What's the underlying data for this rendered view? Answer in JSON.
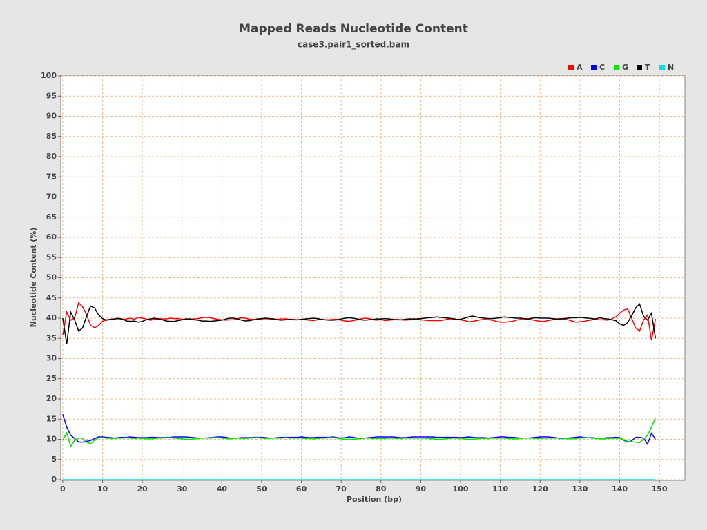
{
  "chart_data": {
    "type": "line",
    "title": "Mapped Reads Nucleotide Content",
    "subtitle": "case3.pair1_sorted.bam",
    "x_label": "Position (bp)",
    "y_label": "Nucleotide Content (%)",
    "legend": "top-right",
    "grid": true,
    "xlim": [
      -0.5,
      156.4
    ],
    "ylim": [
      0,
      100
    ],
    "xticks": [
      0,
      10,
      20,
      30,
      40,
      50,
      60,
      70,
      80,
      90,
      100,
      110,
      120,
      130,
      140,
      150
    ],
    "yticks": [
      0,
      5,
      10,
      15,
      20,
      25,
      30,
      35,
      40,
      45,
      50,
      55,
      60,
      65,
      70,
      75,
      80,
      85,
      90,
      95,
      100
    ],
    "x": [
      0,
      1,
      2,
      3,
      4,
      5,
      6,
      7,
      8,
      9,
      10,
      11,
      12,
      13,
      14,
      15,
      16,
      17,
      18,
      19,
      20,
      21,
      22,
      23,
      24,
      25,
      26,
      27,
      28,
      29,
      30,
      31,
      32,
      33,
      34,
      35,
      36,
      37,
      38,
      39,
      40,
      41,
      42,
      43,
      44,
      45,
      46,
      47,
      48,
      49,
      50,
      51,
      52,
      53,
      54,
      55,
      56,
      57,
      58,
      59,
      60,
      61,
      62,
      63,
      64,
      65,
      66,
      67,
      68,
      69,
      70,
      71,
      72,
      73,
      74,
      75,
      76,
      77,
      78,
      79,
      80,
      81,
      82,
      83,
      84,
      85,
      86,
      87,
      88,
      89,
      90,
      91,
      92,
      93,
      94,
      95,
      96,
      97,
      98,
      99,
      100,
      101,
      102,
      103,
      104,
      105,
      106,
      107,
      108,
      109,
      110,
      111,
      112,
      113,
      114,
      115,
      116,
      117,
      118,
      119,
      120,
      121,
      122,
      123,
      124,
      125,
      126,
      127,
      128,
      129,
      130,
      131,
      132,
      133,
      134,
      135,
      136,
      137,
      138,
      139,
      140,
      141,
      142,
      143,
      144,
      145,
      146,
      147,
      148,
      149
    ],
    "series": [
      {
        "name": "A",
        "color": "#ff0000",
        "values": [
          35.8,
          41.5,
          39.5,
          40.1,
          43.8,
          42.8,
          40.8,
          38.2,
          37.6,
          38.2,
          39.2,
          39.6,
          39.7,
          39.8,
          40.0,
          39.6,
          39.8,
          40.0,
          39.7,
          40.2,
          40.0,
          39.8,
          39.5,
          39.7,
          39.9,
          39.8,
          39.8,
          40.0,
          39.9,
          39.9,
          39.7,
          39.8,
          39.7,
          39.8,
          39.9,
          40.1,
          40.2,
          40.1,
          39.9,
          39.7,
          39.6,
          39.5,
          39.6,
          39.6,
          39.9,
          40.1,
          40.0,
          39.7,
          39.7,
          39.7,
          39.8,
          39.9,
          39.8,
          39.8,
          39.7,
          39.8,
          39.8,
          39.7,
          39.7,
          39.6,
          39.7,
          39.6,
          39.5,
          39.4,
          39.6,
          39.7,
          39.6,
          39.6,
          39.7,
          39.7,
          39.5,
          39.3,
          39.2,
          39.4,
          39.6,
          39.8,
          40.0,
          39.9,
          39.6,
          39.5,
          39.7,
          39.4,
          39.5,
          39.6,
          39.7,
          39.6,
          39.5,
          39.6,
          39.6,
          39.7,
          39.6,
          39.5,
          39.4,
          39.4,
          39.4,
          39.4,
          39.6,
          39.8,
          39.8,
          39.7,
          39.6,
          39.4,
          39.1,
          39.2,
          39.4,
          39.6,
          39.7,
          39.6,
          39.5,
          39.2,
          39.0,
          39.0,
          39.1,
          39.2,
          39.5,
          39.7,
          39.6,
          39.8,
          39.6,
          39.4,
          39.2,
          39.2,
          39.4,
          39.6,
          39.7,
          39.8,
          39.8,
          39.6,
          39.3,
          39.0,
          39.1,
          39.2,
          39.4,
          39.6,
          39.7,
          39.6,
          39.6,
          39.5,
          39.8,
          40.3,
          41.2,
          42.0,
          42.3,
          40.0,
          37.6,
          36.8,
          39.5,
          40.8,
          34.5,
          39.8
        ]
      },
      {
        "name": "C",
        "color": "#0000ff",
        "values": [
          16.2,
          13.0,
          11.0,
          10.2,
          9.3,
          9.3,
          9.5,
          9.7,
          10.2,
          10.6,
          10.6,
          10.5,
          10.4,
          10.3,
          10.4,
          10.5,
          10.5,
          10.6,
          10.5,
          10.4,
          10.4,
          10.4,
          10.5,
          10.5,
          10.4,
          10.4,
          10.5,
          10.5,
          10.6,
          10.6,
          10.6,
          10.6,
          10.5,
          10.4,
          10.3,
          10.3,
          10.3,
          10.4,
          10.5,
          10.6,
          10.6,
          10.5,
          10.3,
          10.3,
          10.3,
          10.4,
          10.4,
          10.4,
          10.5,
          10.5,
          10.5,
          10.4,
          10.3,
          10.3,
          10.4,
          10.5,
          10.5,
          10.5,
          10.5,
          10.5,
          10.6,
          10.5,
          10.4,
          10.4,
          10.5,
          10.5,
          10.5,
          10.5,
          10.6,
          10.4,
          10.3,
          10.4,
          10.6,
          10.5,
          10.3,
          10.2,
          10.3,
          10.4,
          10.5,
          10.6,
          10.6,
          10.6,
          10.6,
          10.6,
          10.5,
          10.4,
          10.4,
          10.5,
          10.6,
          10.6,
          10.6,
          10.6,
          10.6,
          10.6,
          10.5,
          10.5,
          10.5,
          10.5,
          10.5,
          10.5,
          10.4,
          10.5,
          10.6,
          10.5,
          10.4,
          10.4,
          10.4,
          10.3,
          10.4,
          10.5,
          10.6,
          10.6,
          10.5,
          10.5,
          10.4,
          10.3,
          10.3,
          10.3,
          10.4,
          10.5,
          10.6,
          10.6,
          10.6,
          10.5,
          10.4,
          10.2,
          10.2,
          10.3,
          10.4,
          10.5,
          10.6,
          10.5,
          10.4,
          10.4,
          10.3,
          10.2,
          10.3,
          10.4,
          10.4,
          10.5,
          10.4,
          9.8,
          9.3,
          9.6,
          10.5,
          10.5,
          10.3,
          8.8,
          11.5,
          10.0
        ]
      },
      {
        "name": "G",
        "color": "#00e600",
        "values": [
          9.8,
          11.6,
          8.2,
          9.8,
          10.3,
          10.3,
          9.3,
          8.9,
          9.8,
          10.4,
          10.4,
          10.3,
          10.2,
          10.2,
          10.3,
          10.3,
          10.4,
          10.3,
          10.2,
          10.3,
          10.2,
          10.1,
          10.1,
          10.2,
          10.3,
          10.3,
          10.4,
          10.4,
          10.3,
          10.2,
          10.1,
          10.0,
          10.0,
          10.1,
          10.2,
          10.3,
          10.3,
          10.3,
          10.4,
          10.4,
          10.3,
          10.2,
          10.1,
          10.2,
          10.3,
          10.2,
          10.2,
          10.3,
          10.4,
          10.4,
          10.3,
          10.2,
          10.2,
          10.3,
          10.3,
          10.3,
          10.4,
          10.3,
          10.3,
          10.3,
          10.3,
          10.2,
          10.2,
          10.1,
          10.2,
          10.3,
          10.3,
          10.4,
          10.4,
          10.3,
          10.1,
          10.0,
          10.0,
          10.0,
          10.1,
          10.2,
          10.3,
          10.3,
          10.2,
          10.2,
          10.2,
          10.2,
          10.3,
          10.3,
          10.2,
          10.2,
          10.3,
          10.3,
          10.3,
          10.3,
          10.3,
          10.3,
          10.2,
          10.1,
          10.0,
          10.0,
          10.1,
          10.2,
          10.3,
          10.3,
          10.2,
          10.1,
          10.0,
          10.0,
          10.1,
          10.2,
          10.2,
          10.2,
          10.3,
          10.3,
          10.3,
          10.3,
          10.2,
          10.1,
          10.1,
          10.2,
          10.3,
          10.3,
          10.3,
          10.2,
          10.2,
          10.3,
          10.3,
          10.3,
          10.3,
          10.3,
          10.2,
          10.1,
          10.1,
          10.2,
          10.3,
          10.4,
          10.4,
          10.3,
          10.2,
          10.1,
          10.1,
          10.2,
          10.2,
          10.3,
          10.2,
          9.9,
          9.5,
          9.4,
          9.3,
          9.2,
          10.0,
          11.0,
          13.0,
          15.3
        ]
      },
      {
        "name": "T",
        "color": "#000000",
        "values": [
          40.0,
          33.6,
          41.5,
          39.5,
          36.8,
          37.6,
          40.5,
          43.0,
          42.5,
          40.8,
          39.9,
          39.5,
          39.7,
          39.8,
          39.9,
          39.8,
          39.3,
          39.2,
          39.3,
          39.0,
          39.2,
          39.6,
          39.8,
          40.0,
          39.8,
          39.6,
          39.3,
          39.2,
          39.2,
          39.4,
          39.6,
          39.8,
          39.8,
          39.6,
          39.5,
          39.3,
          39.3,
          39.2,
          39.3,
          39.4,
          39.5,
          39.8,
          40.0,
          40.0,
          39.8,
          39.5,
          39.3,
          39.4,
          39.6,
          39.8,
          39.9,
          40.0,
          39.9,
          39.8,
          39.6,
          39.5,
          39.6,
          39.7,
          39.6,
          39.6,
          39.7,
          39.8,
          39.9,
          40.0,
          39.9,
          39.7,
          39.6,
          39.5,
          39.5,
          39.6,
          39.8,
          40.0,
          40.1,
          40.0,
          39.8,
          39.6,
          39.5,
          39.6,
          39.7,
          39.8,
          39.8,
          39.9,
          39.8,
          39.7,
          39.6,
          39.6,
          39.7,
          39.8,
          39.8,
          39.8,
          39.9,
          40.0,
          40.1,
          40.2,
          40.3,
          40.2,
          40.1,
          40.0,
          39.9,
          39.7,
          39.7,
          40.0,
          40.3,
          40.5,
          40.3,
          40.1,
          40.0,
          39.9,
          39.9,
          40.0,
          40.1,
          40.3,
          40.2,
          40.1,
          40.0,
          40.0,
          39.9,
          39.8,
          40.0,
          40.1,
          40.0,
          40.0,
          40.0,
          39.9,
          39.8,
          39.8,
          39.9,
          40.0,
          40.1,
          40.1,
          40.2,
          40.1,
          40.0,
          39.9,
          39.8,
          40.1,
          39.9,
          39.8,
          39.6,
          39.4,
          38.6,
          38.2,
          38.9,
          40.6,
          42.5,
          43.5,
          40.5,
          39.5,
          41.2,
          35.0
        ]
      },
      {
        "name": "N",
        "color": "#00e0e0",
        "values": [
          0,
          0,
          0,
          0,
          0,
          0,
          0,
          0,
          0,
          0,
          0,
          0,
          0,
          0,
          0,
          0,
          0,
          0,
          0,
          0,
          0,
          0,
          0,
          0,
          0,
          0,
          0,
          0,
          0,
          0,
          0,
          0,
          0,
          0,
          0,
          0,
          0,
          0,
          0,
          0,
          0,
          0,
          0,
          0,
          0,
          0,
          0,
          0,
          0,
          0,
          0,
          0,
          0,
          0,
          0,
          0,
          0,
          0,
          0,
          0,
          0,
          0,
          0,
          0,
          0,
          0,
          0,
          0,
          0,
          0,
          0,
          0,
          0,
          0,
          0,
          0,
          0,
          0,
          0,
          0,
          0,
          0,
          0,
          0,
          0,
          0,
          0,
          0,
          0,
          0,
          0,
          0,
          0,
          0,
          0,
          0,
          0,
          0,
          0,
          0,
          0,
          0,
          0,
          0,
          0,
          0,
          0,
          0,
          0,
          0,
          0,
          0,
          0,
          0,
          0,
          0,
          0,
          0,
          0,
          0,
          0,
          0,
          0,
          0,
          0,
          0,
          0,
          0,
          0,
          0,
          0,
          0,
          0,
          0,
          0,
          0,
          0,
          0,
          0,
          0,
          0,
          0,
          0,
          0,
          0,
          0,
          0,
          0,
          0,
          0
        ]
      }
    ]
  }
}
